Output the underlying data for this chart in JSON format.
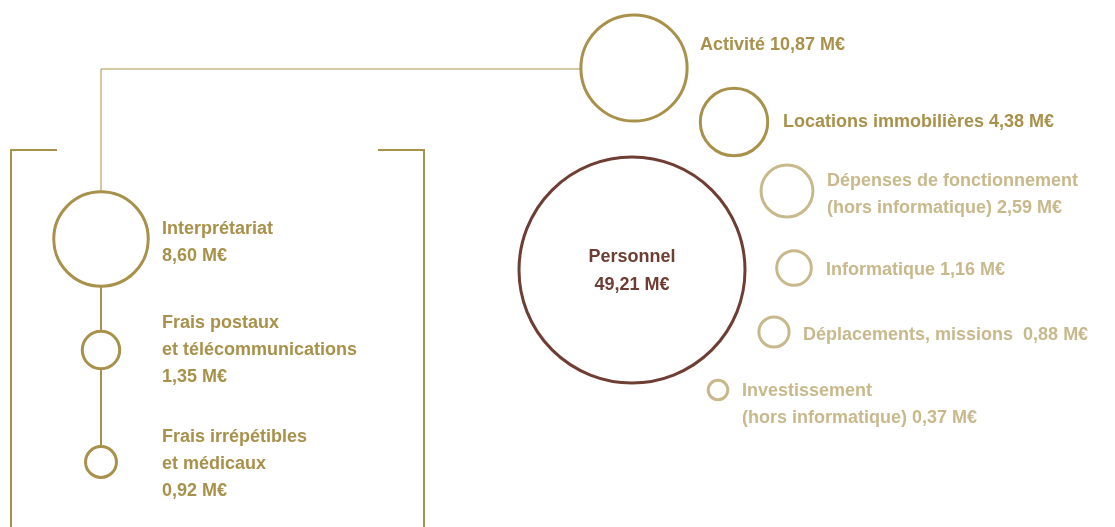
{
  "chart_data": {
    "type": "other",
    "categories": [
      "Personnel",
      "Activité",
      "Locations immobilières",
      "Dépenses de fonctionnement (hors informatique)",
      "Informatique",
      "Déplacements, missions",
      "Investissement (hors informatique)",
      "Interprétariat",
      "Frais postaux et télécommunications",
      "Frais irrépétibles et médicaux"
    ],
    "values": [
      49.21,
      10.87,
      4.38,
      2.59,
      1.16,
      0.88,
      0.37,
      8.6,
      1.35,
      0.92
    ],
    "value_labels": [
      "49,21 M€",
      "10,87 M€",
      "4,38 M€",
      "2,59 M€",
      "1,16 M€",
      "0,88 M€",
      "0,37 M€",
      "8,60 M€",
      "1,35 M€",
      "0,92 M€"
    ],
    "colors": [
      "#6e3d33",
      "#a8914a",
      "#a8914a",
      "#c8b98c",
      "#c8b98c",
      "#c8b98c",
      "#c8b98c",
      "#a8914a",
      "#a8914a",
      "#a8914a"
    ]
  }
}
